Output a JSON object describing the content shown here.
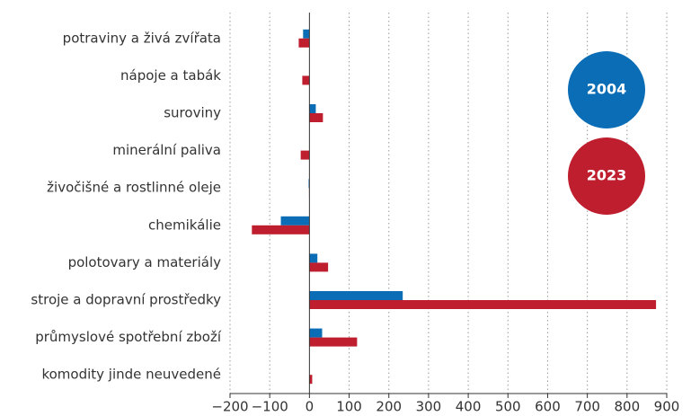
{
  "chart_data": {
    "type": "bar",
    "orientation": "horizontal",
    "categories": [
      "potraviny a živá zvířata",
      "nápoje a tabák",
      "suroviny",
      "minerální paliva",
      "živočišné a rostlinné oleje",
      "chemikálie",
      "polotovary a materiály",
      "stroje a dopravní prostředky",
      "průmyslové spotřební zboží",
      "komodity jinde neuvedené"
    ],
    "series": [
      {
        "name": "2004",
        "color": "#0a6db5",
        "values": [
          -16,
          0,
          16,
          0,
          -2,
          -72,
          20,
          235,
          32,
          0
        ]
      },
      {
        "name": "2023",
        "color": "#be1e2d",
        "values": [
          -27,
          -18,
          34,
          -22,
          -1,
          -145,
          47,
          873,
          120,
          7
        ]
      }
    ],
    "xlim": [
      -200,
      900
    ],
    "xticks": [
      {
        "value": -200,
        "label": "−200"
      },
      {
        "value": -100,
        "label": "−100"
      },
      0,
      100,
      200,
      300,
      400,
      500,
      600,
      700,
      800,
      900
    ],
    "grid": true
  }
}
